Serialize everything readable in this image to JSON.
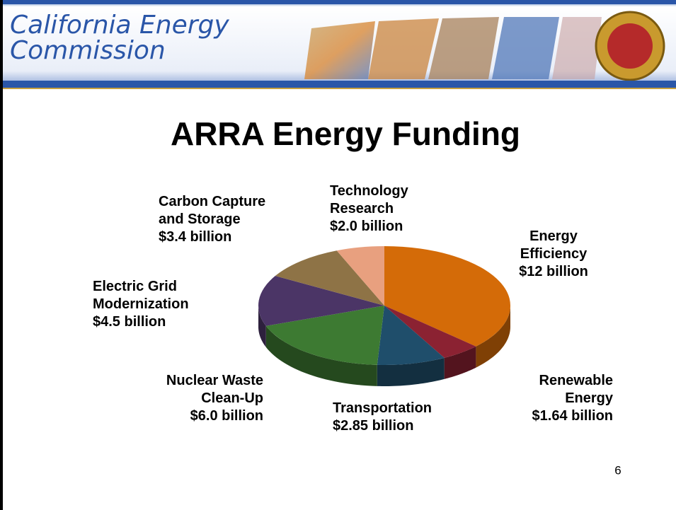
{
  "slide": {
    "header": "California Energy\nCommission",
    "page_number": 6
  },
  "chart_data": {
    "type": "pie",
    "title": "ARRA Energy Funding",
    "categories": [
      "Energy\nEfficiency",
      "Renewable\nEnergy",
      "Transportation",
      "Nuclear Waste\nClean-Up",
      "Electric Grid\nModernization",
      "Carbon Capture\nand  Storage",
      "Technology\nResearch"
    ],
    "values": [
      12,
      1.64,
      2.85,
      6.0,
      4.5,
      3.4,
      2.0
    ],
    "value_labels": [
      "$12 billion",
      "$1.64 billion",
      "$2.85 billion",
      "$6.0 billion",
      "$4.5 billion",
      "$3.4 billion",
      "$2.0 billion"
    ],
    "colors": [
      "#d46b08",
      "#8b2232",
      "#1f4e6b",
      "#3d7a32",
      "#4b3566",
      "#8e7346",
      "#e8a07f"
    ]
  }
}
